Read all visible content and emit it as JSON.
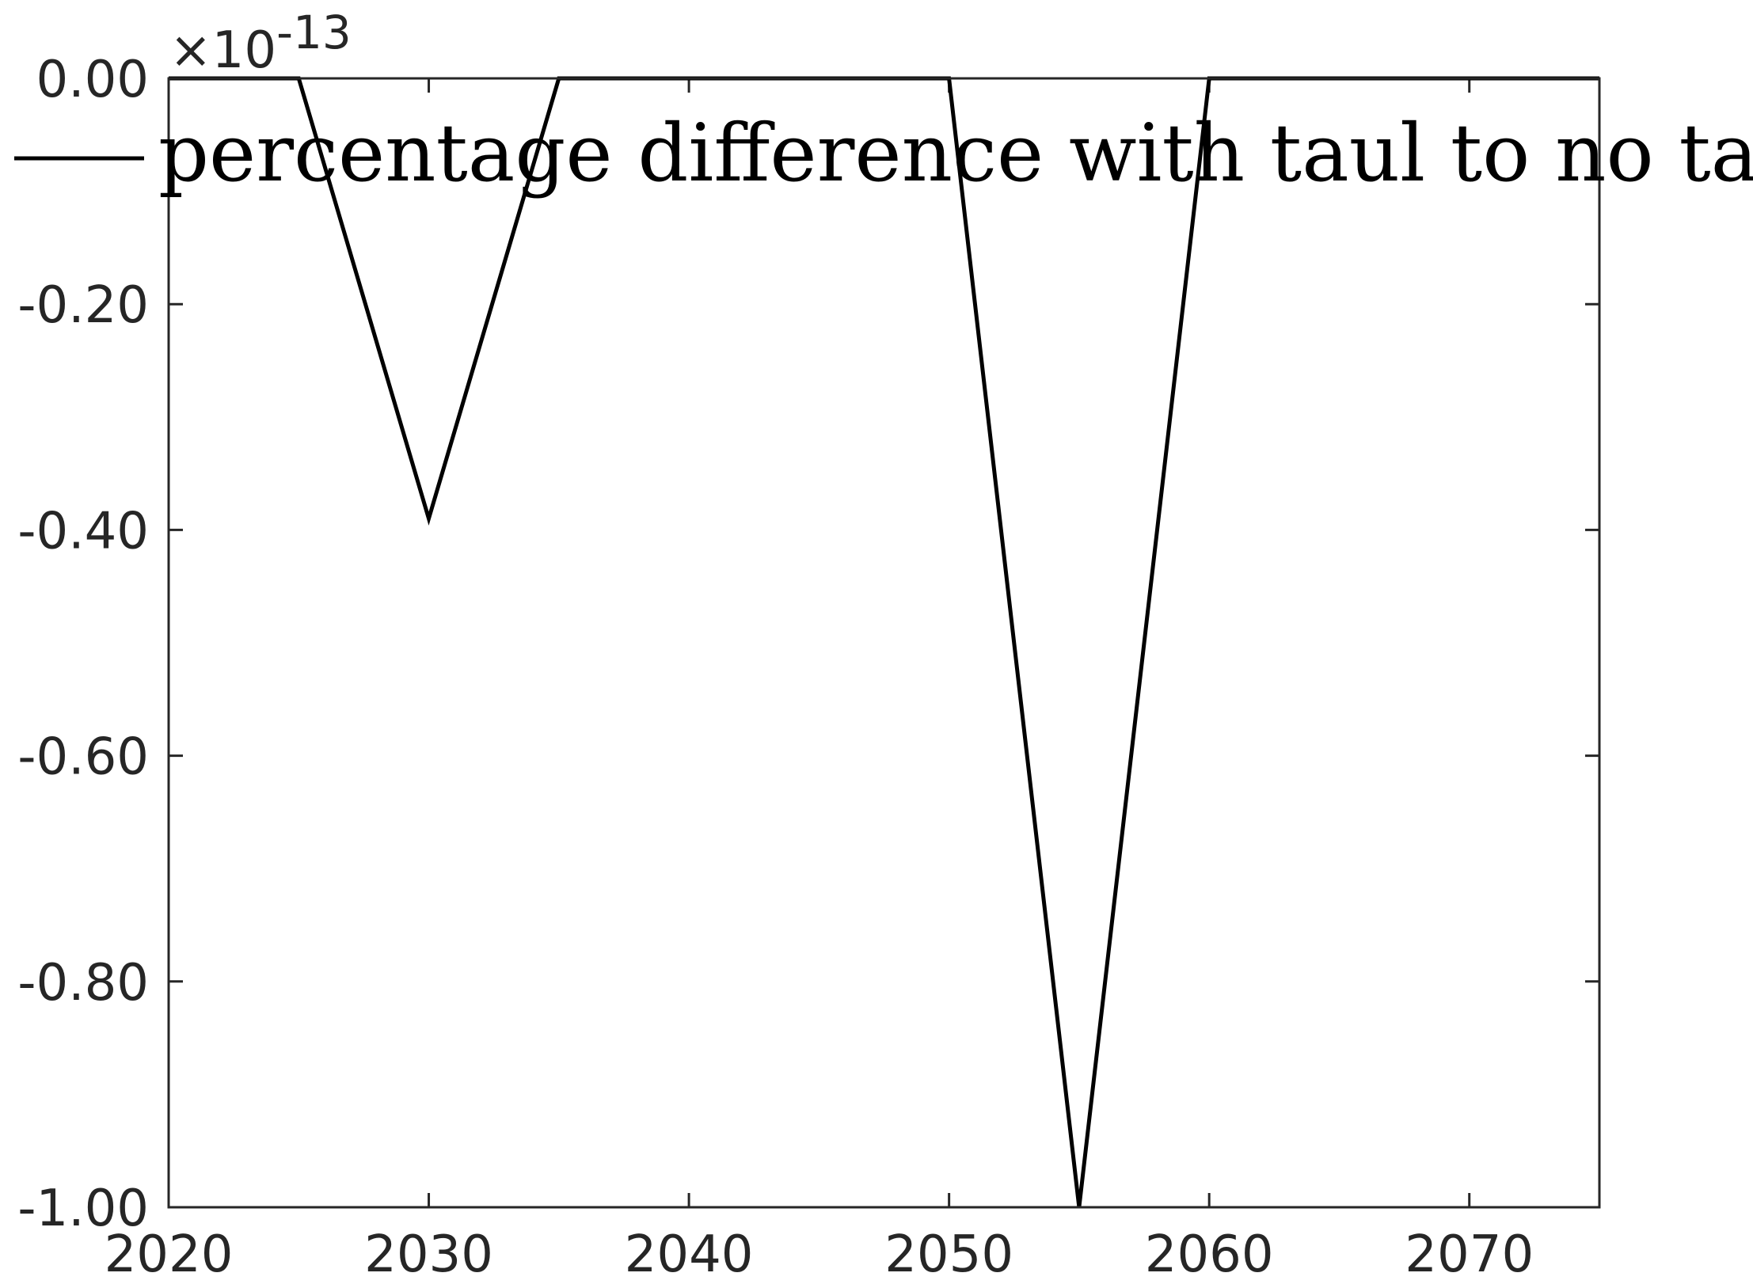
{
  "chart_data": {
    "type": "line",
    "title": "",
    "xlabel": "",
    "ylabel": "",
    "xlim": [
      2020,
      2075
    ],
    "ylim": [
      -1.0,
      0.0
    ],
    "y_exponent_label": "×10",
    "y_exponent_power": "-13",
    "x_ticks": [
      2020,
      2030,
      2040,
      2050,
      2060,
      2070
    ],
    "x_tick_labels": [
      "2020",
      "2030",
      "2040",
      "2050",
      "2060",
      "2070"
    ],
    "y_ticks": [
      0.0,
      -0.2,
      -0.4,
      -0.6,
      -0.8,
      -1.0
    ],
    "y_tick_labels": [
      "0.00",
      "-0.20",
      "-0.40",
      "-0.60",
      "-0.80",
      "-1.00"
    ],
    "grid": false,
    "legend_position": "top-left",
    "series": [
      {
        "name": "percentage difference with taul to no taul",
        "color": "#000000",
        "x": [
          2020,
          2025,
          2030,
          2035,
          2040,
          2045,
          2050,
          2055,
          2060,
          2065,
          2070,
          2075
        ],
        "y": [
          0.0,
          0.0,
          -0.39,
          0.0,
          0.0,
          0.0,
          0.0,
          -1.0,
          0.0,
          0.0,
          0.0,
          0.0
        ]
      }
    ]
  }
}
